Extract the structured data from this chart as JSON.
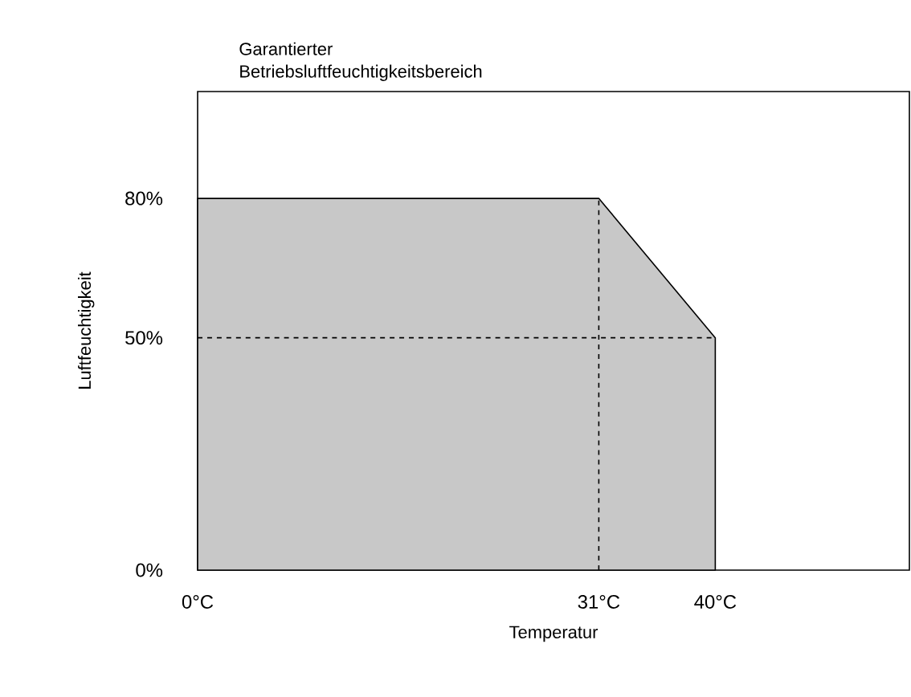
{
  "chart_data": {
    "type": "area",
    "title": "Garantierter Betriebsluftfeuchtigkeitsbereich",
    "xlabel": "Temperatur",
    "ylabel": "Luftfeuchtigkeit",
    "x": [
      0,
      31,
      40
    ],
    "values": [
      80,
      80,
      50
    ],
    "color": "#c8c8c8",
    "xlim": [
      0,
      55
    ],
    "ylim": [
      0,
      103
    ],
    "xticks": [
      {
        "value": 0,
        "label": "0°C"
      },
      {
        "value": 31,
        "label": "31°C"
      },
      {
        "value": 40,
        "label": "40°C"
      }
    ],
    "yticks": [
      {
        "value": 0,
        "label": "0%"
      },
      {
        "value": 50,
        "label": "50%"
      },
      {
        "value": 80,
        "label": "80%"
      }
    ],
    "ref_lines": [
      {
        "axis": "x",
        "value": 31,
        "line_style": "dashed"
      },
      {
        "axis": "y",
        "value": 50,
        "line_style": "dashed"
      }
    ],
    "line_style": "solid"
  }
}
